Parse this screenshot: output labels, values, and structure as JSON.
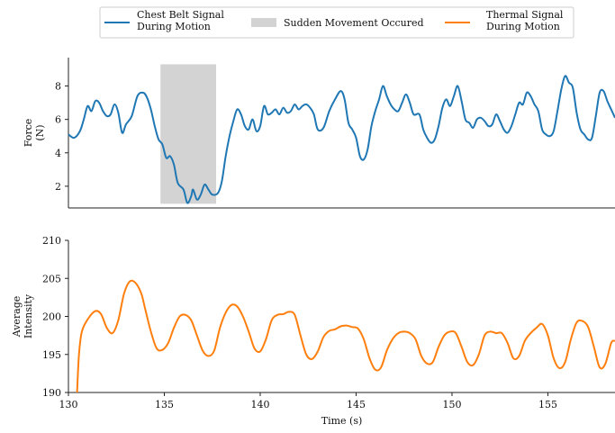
{
  "legend": {
    "items": [
      {
        "label_lines": [
          "Chest Belt Signal",
          "During Motion"
        ],
        "color": "#1f77b4",
        "kind": "line"
      },
      {
        "label_lines": [
          "Sudden Movement Occured"
        ],
        "color": "#d3d3d3",
        "kind": "patch"
      },
      {
        "label_lines": [
          "Thermal Signal",
          "During Motion"
        ],
        "color": "#ff7f0e",
        "kind": "line"
      }
    ],
    "placement": "top-center"
  },
  "chart_data": [
    {
      "type": "line",
      "panel": "top",
      "ylabel_lines": [
        "Force",
        "(N)"
      ],
      "xlim": [
        130,
        158.5
      ],
      "ylim": [
        0.7,
        9.7
      ],
      "yticks": [
        2,
        4,
        6,
        8
      ],
      "grid": false,
      "highlight": {
        "name": "Sudden Movement Occured",
        "x0": 134.8,
        "x1": 137.7,
        "y0": 0.95,
        "y1": 9.3,
        "color": "#d3d3d3"
      },
      "series": [
        {
          "name": "Chest Belt Signal During Motion",
          "color": "#1f77b4",
          "points": [
            [
              130.0,
              5.1
            ],
            [
              130.3,
              4.9
            ],
            [
              130.6,
              5.3
            ],
            [
              130.8,
              6.0
            ],
            [
              131.0,
              6.8
            ],
            [
              131.2,
              6.5
            ],
            [
              131.4,
              7.1
            ],
            [
              131.6,
              7.0
            ],
            [
              131.8,
              6.5
            ],
            [
              132.0,
              6.2
            ],
            [
              132.2,
              6.3
            ],
            [
              132.4,
              6.9
            ],
            [
              132.6,
              6.4
            ],
            [
              132.8,
              5.2
            ],
            [
              133.0,
              5.7
            ],
            [
              133.3,
              6.2
            ],
            [
              133.6,
              7.4
            ],
            [
              133.9,
              7.6
            ],
            [
              134.1,
              7.3
            ],
            [
              134.3,
              6.6
            ],
            [
              134.5,
              5.6
            ],
            [
              134.7,
              4.8
            ],
            [
              134.9,
              4.5
            ],
            [
              135.1,
              3.7
            ],
            [
              135.3,
              3.8
            ],
            [
              135.5,
              3.3
            ],
            [
              135.7,
              2.2
            ],
            [
              136.0,
              1.8
            ],
            [
              136.2,
              1.0
            ],
            [
              136.4,
              1.4
            ],
            [
              136.5,
              1.8
            ],
            [
              136.7,
              1.2
            ],
            [
              136.9,
              1.5
            ],
            [
              137.1,
              2.1
            ],
            [
              137.3,
              1.8
            ],
            [
              137.5,
              1.5
            ],
            [
              137.8,
              1.6
            ],
            [
              138.0,
              2.3
            ],
            [
              138.2,
              3.8
            ],
            [
              138.4,
              5.0
            ],
            [
              138.6,
              5.9
            ],
            [
              138.8,
              6.6
            ],
            [
              139.0,
              6.3
            ],
            [
              139.2,
              5.6
            ],
            [
              139.4,
              5.4
            ],
            [
              139.6,
              6.0
            ],
            [
              139.8,
              5.3
            ],
            [
              140.0,
              5.6
            ],
            [
              140.2,
              6.8
            ],
            [
              140.4,
              6.3
            ],
            [
              140.6,
              6.4
            ],
            [
              140.8,
              6.6
            ],
            [
              141.0,
              6.3
            ],
            [
              141.2,
              6.7
            ],
            [
              141.4,
              6.4
            ],
            [
              141.6,
              6.5
            ],
            [
              141.8,
              6.9
            ],
            [
              142.0,
              6.6
            ],
            [
              142.2,
              6.8
            ],
            [
              142.4,
              6.9
            ],
            [
              142.6,
              6.7
            ],
            [
              142.8,
              6.3
            ],
            [
              143.0,
              5.4
            ],
            [
              143.3,
              5.5
            ],
            [
              143.6,
              6.5
            ],
            [
              143.9,
              7.2
            ],
            [
              144.2,
              7.7
            ],
            [
              144.4,
              7.2
            ],
            [
              144.6,
              5.8
            ],
            [
              144.8,
              5.4
            ],
            [
              145.0,
              4.9
            ],
            [
              145.2,
              3.8
            ],
            [
              145.4,
              3.6
            ],
            [
              145.6,
              4.2
            ],
            [
              145.8,
              5.6
            ],
            [
              146.0,
              6.5
            ],
            [
              146.2,
              7.2
            ],
            [
              146.4,
              8.0
            ],
            [
              146.6,
              7.4
            ],
            [
              146.8,
              6.9
            ],
            [
              147.0,
              6.6
            ],
            [
              147.2,
              6.5
            ],
            [
              147.4,
              7.0
            ],
            [
              147.6,
              7.5
            ],
            [
              147.8,
              7.0
            ],
            [
              148.0,
              6.3
            ],
            [
              148.3,
              6.3
            ],
            [
              148.5,
              5.4
            ],
            [
              148.7,
              4.9
            ],
            [
              148.9,
              4.6
            ],
            [
              149.1,
              4.8
            ],
            [
              149.3,
              5.6
            ],
            [
              149.5,
              6.7
            ],
            [
              149.7,
              7.2
            ],
            [
              149.9,
              6.8
            ],
            [
              150.1,
              7.4
            ],
            [
              150.3,
              8.0
            ],
            [
              150.5,
              7.1
            ],
            [
              150.7,
              6.0
            ],
            [
              150.9,
              5.8
            ],
            [
              151.1,
              5.5
            ],
            [
              151.3,
              6.0
            ],
            [
              151.5,
              6.1
            ],
            [
              151.7,
              5.9
            ],
            [
              151.9,
              5.6
            ],
            [
              152.1,
              5.7
            ],
            [
              152.3,
              6.3
            ],
            [
              152.5,
              5.9
            ],
            [
              152.7,
              5.4
            ],
            [
              152.9,
              5.2
            ],
            [
              153.1,
              5.6
            ],
            [
              153.3,
              6.3
            ],
            [
              153.5,
              7.0
            ],
            [
              153.7,
              6.9
            ],
            [
              153.9,
              7.6
            ],
            [
              154.1,
              7.4
            ],
            [
              154.3,
              6.9
            ],
            [
              154.5,
              6.5
            ],
            [
              154.7,
              5.4
            ],
            [
              154.9,
              5.1
            ],
            [
              155.1,
              5.0
            ],
            [
              155.3,
              5.3
            ],
            [
              155.5,
              6.5
            ],
            [
              155.7,
              7.8
            ],
            [
              155.9,
              8.6
            ],
            [
              156.1,
              8.2
            ],
            [
              156.3,
              7.9
            ],
            [
              156.5,
              6.4
            ],
            [
              156.7,
              5.4
            ],
            [
              156.9,
              5.1
            ],
            [
              157.1,
              4.8
            ],
            [
              157.3,
              4.9
            ],
            [
              157.5,
              6.2
            ],
            [
              157.7,
              7.6
            ],
            [
              157.9,
              7.7
            ],
            [
              158.1,
              7.1
            ],
            [
              158.3,
              6.6
            ],
            [
              158.5,
              6.1
            ]
          ]
        }
      ]
    },
    {
      "type": "line",
      "panel": "bottom",
      "ylabel_lines": [
        "Average",
        "Intensity"
      ],
      "xlabel": "Time (s)",
      "xlim": [
        130,
        158.5
      ],
      "ylim": [
        190,
        210
      ],
      "xticks": [
        130,
        135,
        140,
        145,
        150,
        155
      ],
      "yticks": [
        190,
        195,
        200,
        205,
        210
      ],
      "grid": false,
      "series": [
        {
          "name": "Thermal Signal During Motion",
          "color": "#ff7f0e",
          "points": [
            [
              130.45,
              190.0
            ],
            [
              130.55,
              195.0
            ],
            [
              130.7,
              198.0
            ],
            [
              131.0,
              199.6
            ],
            [
              131.4,
              200.7
            ],
            [
              131.7,
              200.3
            ],
            [
              132.0,
              198.5
            ],
            [
              132.3,
              197.8
            ],
            [
              132.6,
              199.5
            ],
            [
              132.9,
              203.0
            ],
            [
              133.2,
              204.6
            ],
            [
              133.5,
              204.4
            ],
            [
              133.8,
              203.0
            ],
            [
              134.0,
              201.0
            ],
            [
              134.3,
              198.0
            ],
            [
              134.6,
              195.8
            ],
            [
              134.9,
              195.6
            ],
            [
              135.2,
              196.5
            ],
            [
              135.5,
              198.5
            ],
            [
              135.8,
              200.0
            ],
            [
              136.1,
              200.2
            ],
            [
              136.4,
              199.5
            ],
            [
              136.7,
              197.5
            ],
            [
              137.0,
              195.5
            ],
            [
              137.3,
              194.8
            ],
            [
              137.6,
              195.5
            ],
            [
              137.9,
              198.5
            ],
            [
              138.2,
              200.5
            ],
            [
              138.5,
              201.5
            ],
            [
              138.8,
              201.3
            ],
            [
              139.1,
              200.0
            ],
            [
              139.4,
              198.0
            ],
            [
              139.7,
              195.8
            ],
            [
              140.0,
              195.4
            ],
            [
              140.3,
              197.0
            ],
            [
              140.6,
              199.5
            ],
            [
              140.9,
              200.2
            ],
            [
              141.2,
              200.3
            ],
            [
              141.5,
              200.6
            ],
            [
              141.8,
              200.2
            ],
            [
              142.1,
              197.5
            ],
            [
              142.4,
              195.0
            ],
            [
              142.7,
              194.4
            ],
            [
              143.0,
              195.4
            ],
            [
              143.3,
              197.3
            ],
            [
              143.6,
              198.1
            ],
            [
              143.9,
              198.3
            ],
            [
              144.2,
              198.7
            ],
            [
              144.5,
              198.8
            ],
            [
              144.8,
              198.6
            ],
            [
              145.1,
              198.4
            ],
            [
              145.4,
              197.0
            ],
            [
              145.7,
              194.5
            ],
            [
              146.0,
              193.0
            ],
            [
              146.3,
              193.3
            ],
            [
              146.6,
              195.5
            ],
            [
              146.9,
              197.0
            ],
            [
              147.2,
              197.8
            ],
            [
              147.5,
              198.0
            ],
            [
              147.8,
              197.8
            ],
            [
              148.1,
              197.0
            ],
            [
              148.4,
              194.8
            ],
            [
              148.7,
              193.8
            ],
            [
              149.0,
              194.0
            ],
            [
              149.3,
              196.0
            ],
            [
              149.6,
              197.5
            ],
            [
              149.9,
              198.0
            ],
            [
              150.2,
              197.8
            ],
            [
              150.5,
              196.0
            ],
            [
              150.8,
              194.0
            ],
            [
              151.1,
              193.6
            ],
            [
              151.4,
              195.0
            ],
            [
              151.7,
              197.5
            ],
            [
              152.0,
              198.0
            ],
            [
              152.3,
              197.8
            ],
            [
              152.6,
              197.8
            ],
            [
              152.9,
              196.5
            ],
            [
              153.2,
              194.5
            ],
            [
              153.5,
              194.8
            ],
            [
              153.8,
              196.8
            ],
            [
              154.1,
              197.8
            ],
            [
              154.4,
              198.5
            ],
            [
              154.7,
              199.0
            ],
            [
              155.0,
              197.5
            ],
            [
              155.3,
              194.5
            ],
            [
              155.6,
              193.2
            ],
            [
              155.9,
              194.0
            ],
            [
              156.2,
              197.0
            ],
            [
              156.5,
              199.2
            ],
            [
              156.8,
              199.4
            ],
            [
              157.1,
              198.6
            ],
            [
              157.4,
              196.0
            ],
            [
              157.7,
              193.3
            ],
            [
              158.0,
              193.8
            ],
            [
              158.3,
              196.5
            ],
            [
              158.5,
              196.8
            ]
          ]
        }
      ]
    }
  ]
}
